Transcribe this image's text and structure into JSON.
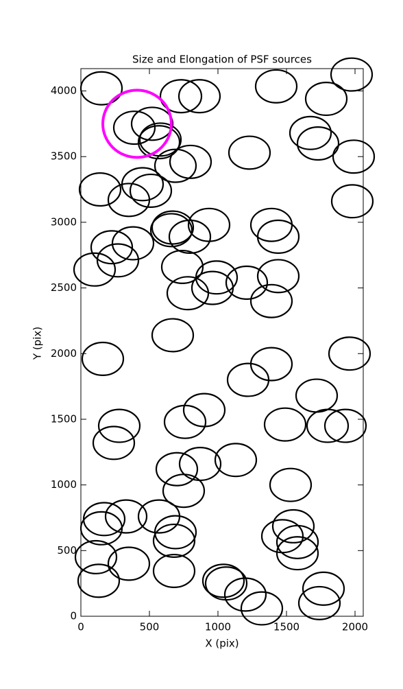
{
  "chart_data": {
    "type": "scatter",
    "title": "Size and Elongation of PSF sources",
    "x_label": "X (pix)",
    "y_label": "Y (pix)",
    "xlim": [
      0,
      2060
    ],
    "ylim": [
      0,
      4170
    ],
    "xticks": [
      0,
      500,
      1000,
      1500,
      2000
    ],
    "yticks": [
      0,
      500,
      1000,
      1500,
      2000,
      2500,
      3000,
      3500,
      4000
    ],
    "marker": "ellipse",
    "ellipse_width": 300,
    "ellipse_height": 250,
    "series": [
      {
        "color": "#000000",
        "x": [
          150,
          730,
          865,
          1425,
          1975,
          1790,
          390,
          520,
          580,
          570,
          1230,
          1675,
          1730,
          1990,
          800,
          690,
          140,
          450,
          510,
          350,
          1980,
          670,
          660,
          935,
          1390,
          1440,
          795,
          225,
          380,
          270,
          100,
          740,
          990,
          1440,
          1210,
          960,
          780,
          1390,
          670,
          160,
          1960,
          1390,
          1220,
          1720,
          900,
          760,
          1490,
          280,
          1800,
          1930,
          240,
          1130,
          870,
          700,
          750,
          1530,
          170,
          330,
          570,
          150,
          690,
          680,
          1550,
          1470,
          1580,
          1580,
          110,
          350,
          680,
          130,
          1040,
          1060,
          1200,
          1320,
          1770,
          1740
        ],
        "y": [
          4020,
          3960,
          3960,
          4035,
          4125,
          3940,
          3720,
          3750,
          3630,
          3610,
          3530,
          3680,
          3600,
          3500,
          3460,
          3430,
          3250,
          3290,
          3240,
          3170,
          3160,
          2960,
          2940,
          2980,
          2980,
          2890,
          2890,
          2810,
          2840,
          2710,
          2640,
          2660,
          2580,
          2590,
          2540,
          2500,
          2460,
          2400,
          2140,
          1960,
          2000,
          1920,
          1800,
          1680,
          1570,
          1480,
          1460,
          1450,
          1450,
          1450,
          1320,
          1190,
          1160,
          1120,
          955,
          1000,
          740,
          760,
          760,
          670,
          640,
          575,
          685,
          610,
          565,
          480,
          450,
          400,
          345,
          270,
          270,
          250,
          165,
          60,
          210,
          100
        ]
      }
    ],
    "highlight": {
      "color": "#ff00ff",
      "x": 410,
      "y": 3750,
      "width": 500,
      "height": 512
    }
  }
}
